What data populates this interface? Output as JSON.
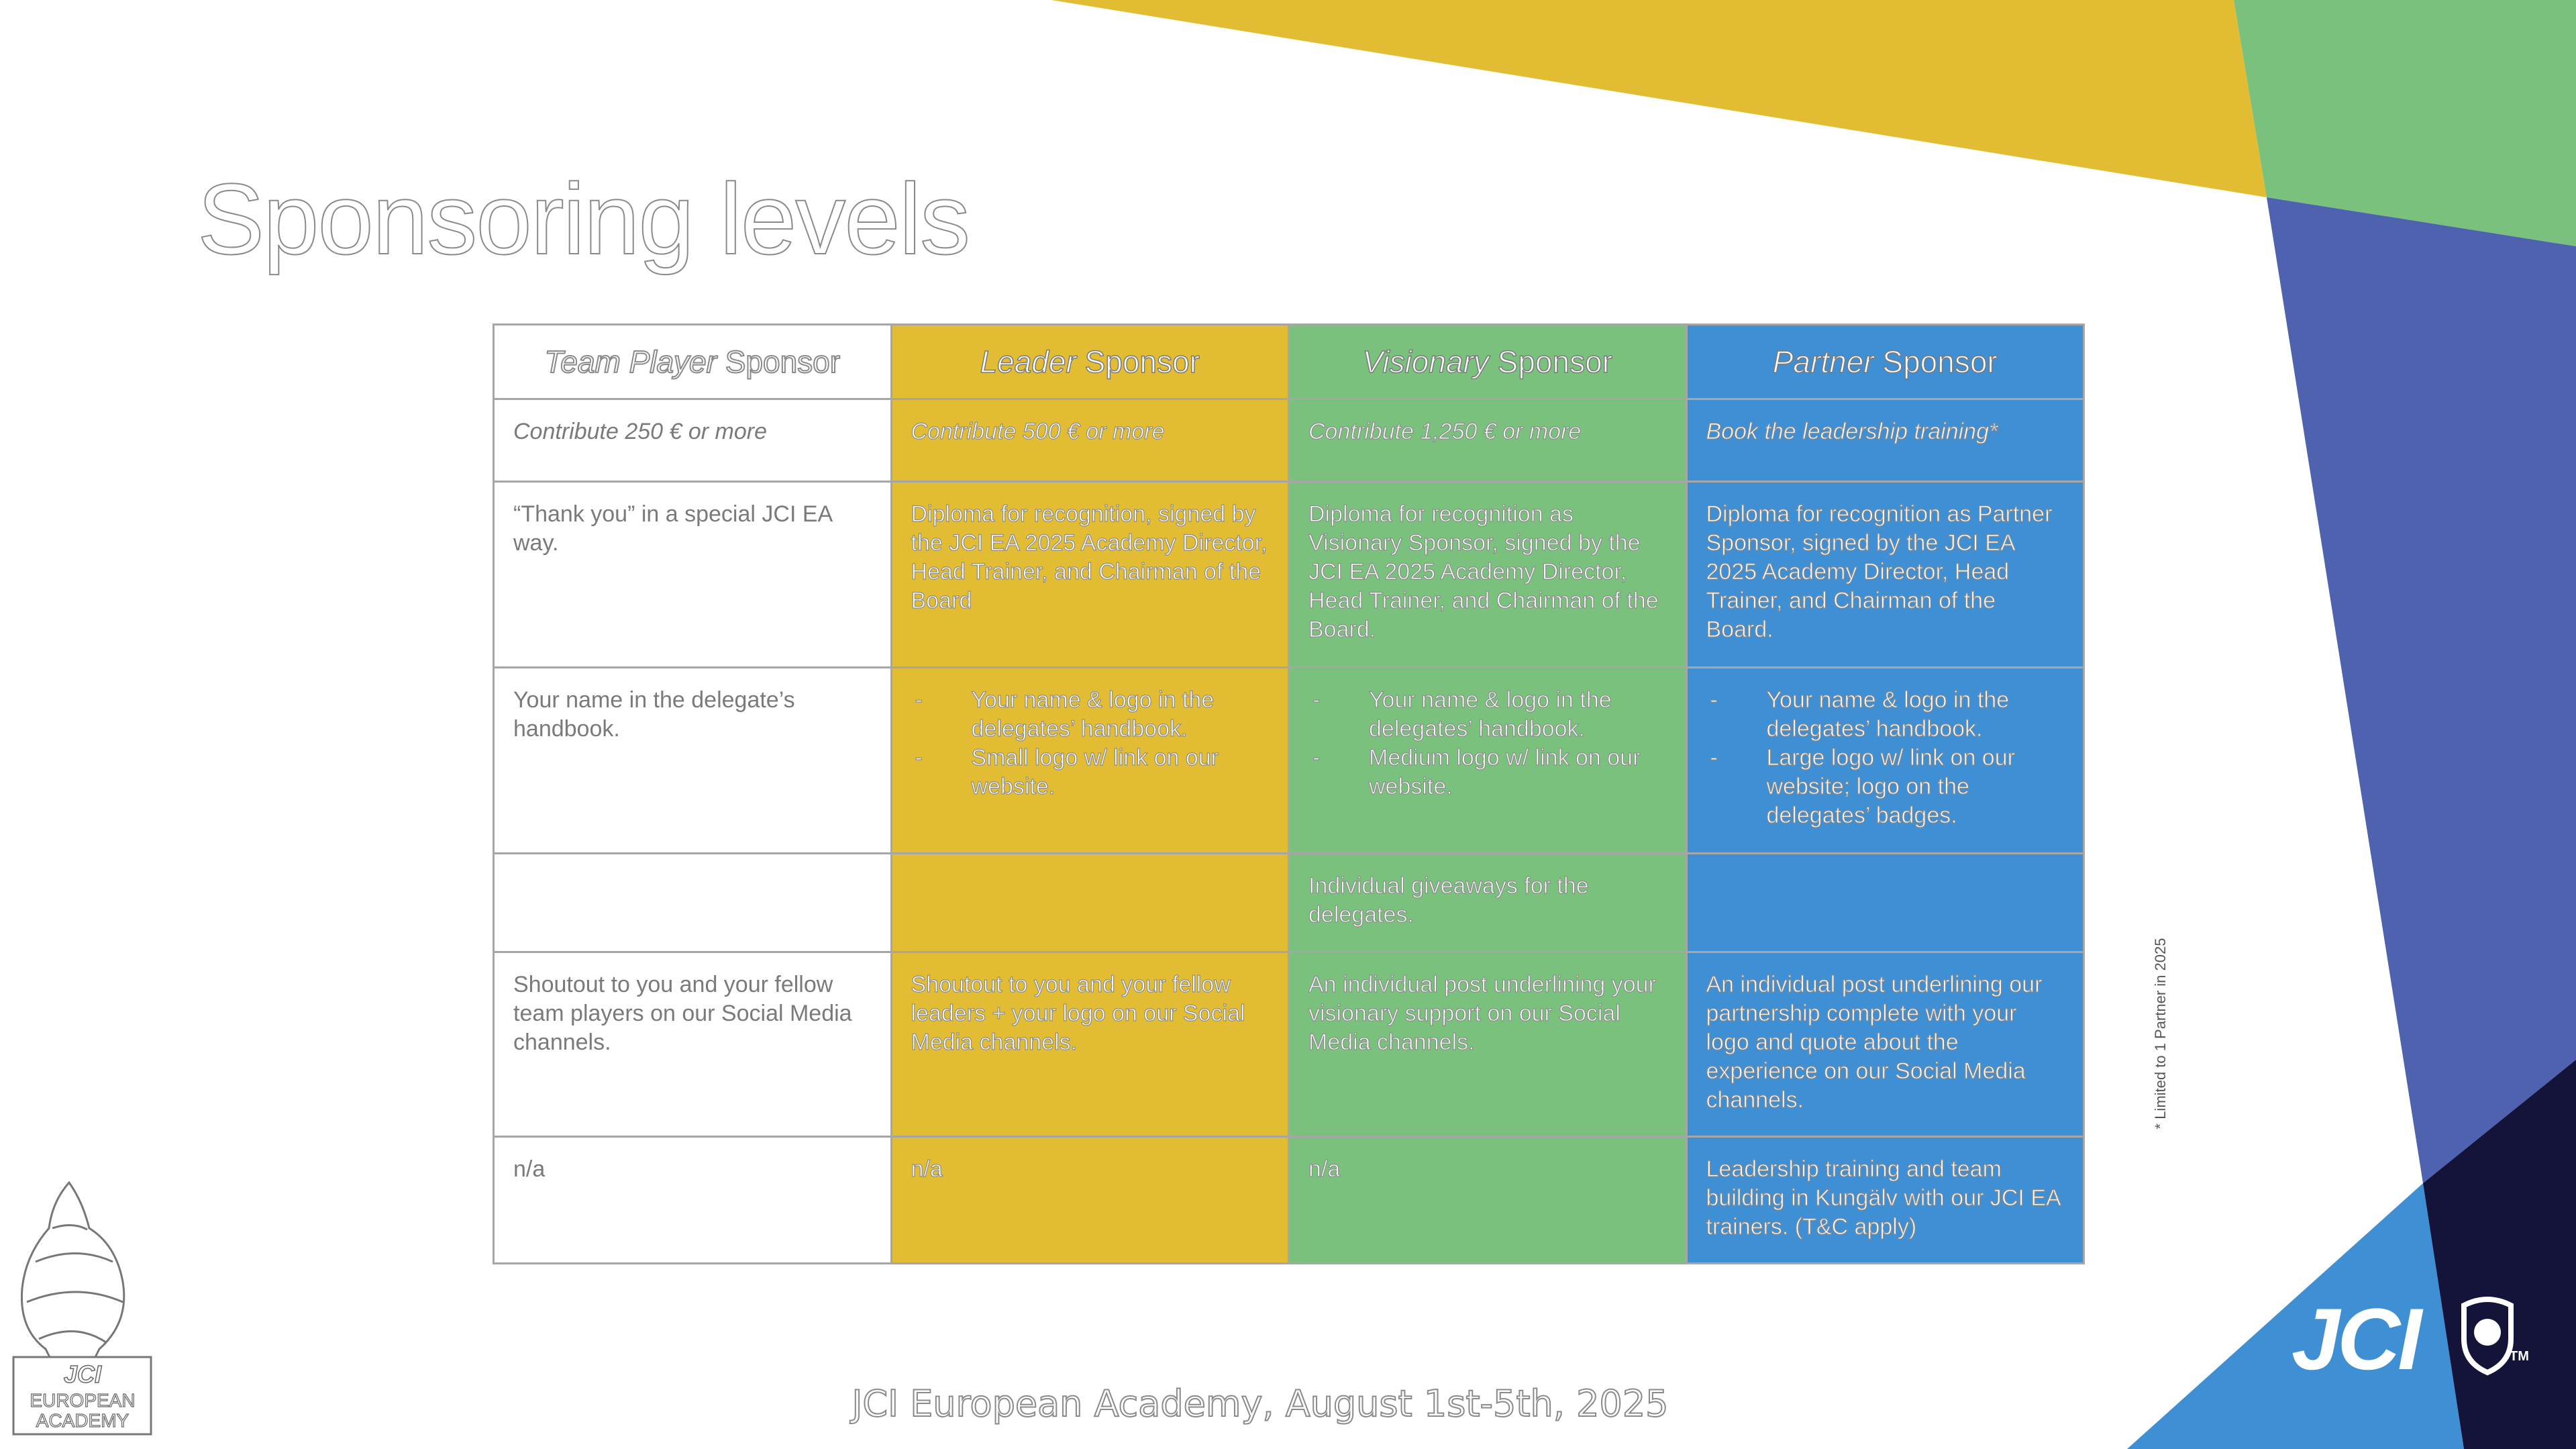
{
  "title": "Sponsoring levels",
  "table": {
    "header": [
      {
        "emphasis": "Team Player",
        "suffix": "Sponsor"
      },
      {
        "emphasis": "Leader",
        "suffix": "Sponsor"
      },
      {
        "emphasis": "Visionary",
        "suffix": "Sponsor"
      },
      {
        "emphasis": "Partner",
        "suffix": "Sponsor"
      }
    ],
    "rows": [
      [
        "Contribute 250 € or more",
        "Contribute 500 € or more",
        "Contribute 1,250 € or more",
        "Book the leadership training*"
      ],
      [
        "“Thank you” in a special JCI EA way.",
        "Diploma for recognition, signed by the JCI EA 2025 Academy Director, Head Trainer, and Chairman of the Board",
        "Diploma for recognition as Visionary Sponsor, signed by the JCI EA 2025 Academy Director, Head Trainer, and Chairman of the Board.",
        "Diploma for recognition as Partner Sponsor, signed by the JCI EA 2025 Academy Director, Head Trainer, and Chairman of the Board."
      ],
      [
        "Your name in the delegate’s handbook.",
        [
          "Your name & logo in the delegates’ handbook.",
          "Small logo w/ link on our website."
        ],
        [
          "Your name & logo in the delegates’ handbook.",
          "Medium logo w/ link on our website."
        ],
        [
          "Your name & logo in the delegates’ handbook.",
          "Large logo w/ link on our website; logo on the delegates’ badges."
        ]
      ],
      [
        null,
        null,
        "Individual giveaways for the delegates.",
        null
      ],
      [
        "Shoutout to you and your fellow team players on our Social Media channels.",
        "Shoutout to you and your fellow leaders + your logo on our Social Media channels.",
        "An individual post underlining your visionary support on our Social Media channels.",
        "An individual post underlining our partnership complete with your logo and quote about the experience on our Social Media channels."
      ],
      [
        "n/a",
        "n/a",
        "n/a",
        "Leadership training and team building in Kungälv with our JCI EA trainers. (T&C apply)"
      ]
    ]
  },
  "side_note": "* Limited to 1 Partner in 2025",
  "footer": "JCI European Academy, August 1st-5th, 2025",
  "academy_logo": {
    "brand": "JCI",
    "lines": [
      "EUROPEAN",
      "ACADEMY"
    ]
  },
  "brand_logo": {
    "text": "JCI",
    "mark": "TM"
  }
}
